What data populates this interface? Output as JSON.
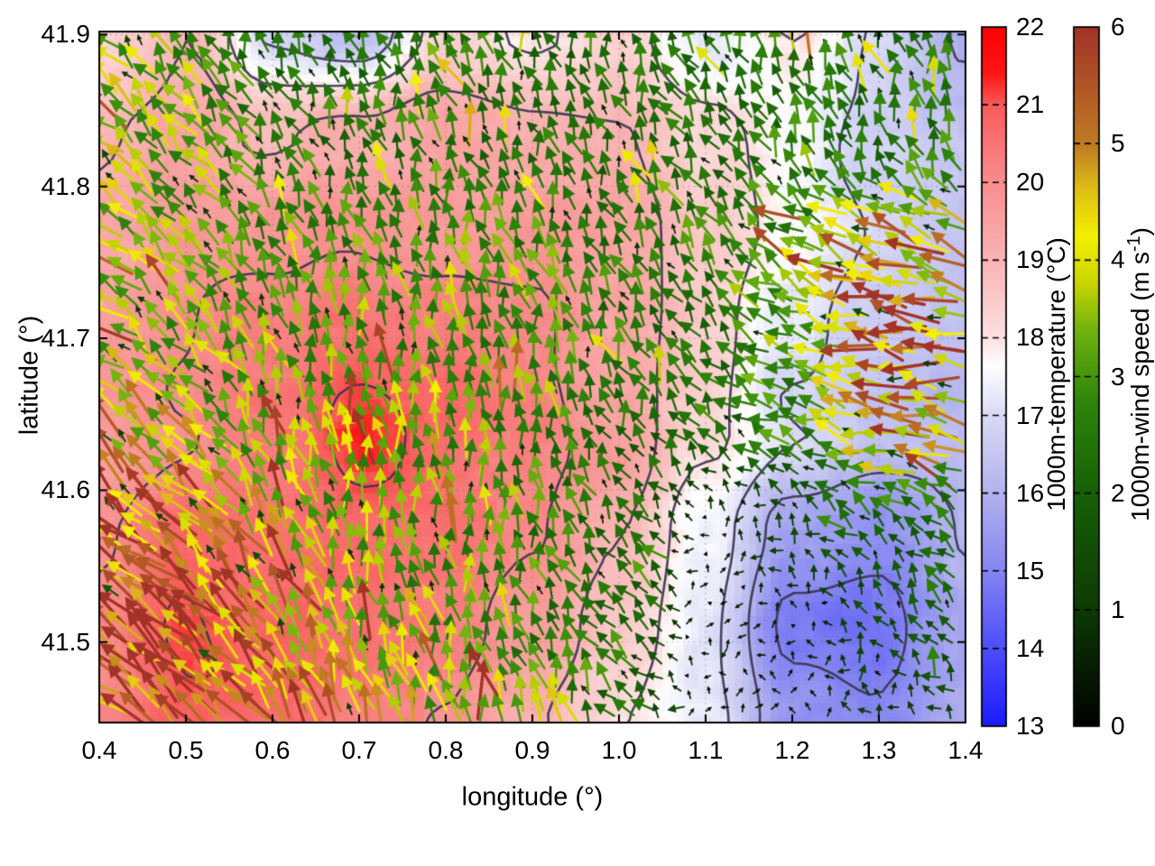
{
  "figure": {
    "xlabel": "longitude (°)",
    "ylabel": "latitude (°)",
    "background": "#ffffff",
    "contour_color": "#3b3550",
    "border_color": "#000000",
    "grid_dot_color": "rgba(95,95,95,0.45)"
  },
  "axes": {
    "x": {
      "min": 0.4,
      "max": 1.4,
      "ticks": [
        "0.4",
        "0.5",
        "0.6",
        "0.7",
        "0.8",
        "0.9",
        "1.0",
        "1.1",
        "1.2",
        "1.3",
        "1.4"
      ]
    },
    "y": {
      "min": 41.447,
      "max": 41.902,
      "ticks": [
        "41.5",
        "41.6",
        "41.7",
        "41.8",
        "41.9"
      ]
    }
  },
  "colorbars": {
    "temperature": {
      "label": "1000m-temperature (°C)",
      "min": 13,
      "max": 22,
      "ticks": [
        "13",
        "14",
        "15",
        "16",
        "17",
        "18",
        "19",
        "20",
        "21",
        "22"
      ],
      "stops": [
        {
          "v": 13,
          "c": "#1a1aff"
        },
        {
          "v": 14,
          "c": "#4d4dfa"
        },
        {
          "v": 15,
          "c": "#8484f2"
        },
        {
          "v": 16,
          "c": "#b2b2ee"
        },
        {
          "v": 17,
          "c": "#d9d9f6"
        },
        {
          "v": 17.65,
          "c": "#ffffff"
        },
        {
          "v": 18,
          "c": "#fce0e0"
        },
        {
          "v": 19,
          "c": "#f9b4b4"
        },
        {
          "v": 20,
          "c": "#f88e8e"
        },
        {
          "v": 21,
          "c": "#fa5a5a"
        },
        {
          "v": 21.4,
          "c": "#fd1616"
        },
        {
          "v": 22,
          "c": "#fe0000"
        }
      ]
    },
    "wind": {
      "label_prefix": "1000m-wind speed (m s",
      "label_sup": "-1",
      "label_suffix": ")",
      "min": 0,
      "max": 6,
      "ticks": [
        "0",
        "1",
        "2",
        "3",
        "4",
        "5",
        "6"
      ],
      "stops": [
        {
          "v": 0,
          "c": "#000000"
        },
        {
          "v": 1,
          "c": "#0c3a03"
        },
        {
          "v": 2,
          "c": "#166006"
        },
        {
          "v": 2.8,
          "c": "#2f850a"
        },
        {
          "v": 3.4,
          "c": "#6fb30e"
        },
        {
          "v": 3.8,
          "c": "#c8d400"
        },
        {
          "v": 4.2,
          "c": "#f4f000"
        },
        {
          "v": 4.6,
          "c": "#dfc015"
        },
        {
          "v": 5,
          "c": "#c07b22"
        },
        {
          "v": 5.5,
          "c": "#b05526"
        },
        {
          "v": 6,
          "c": "#a23327"
        }
      ]
    }
  },
  "chart_data": {
    "type": "heatmap",
    "overlays": [
      "contour",
      "quiver"
    ],
    "title": "",
    "xlabel": "longitude (°)",
    "ylabel": "latitude (°)",
    "xlim": [
      0.4,
      1.4
    ],
    "ylim": [
      41.447,
      41.902
    ],
    "grid": true,
    "temperature_units": "°C",
    "wind_units": "m s-1",
    "temperature_grid": {
      "x": [
        0.4,
        0.5,
        0.6,
        0.7,
        0.8,
        0.9,
        1.0,
        1.1,
        1.2,
        1.3,
        1.4
      ],
      "y": [
        41.902,
        41.835,
        41.77,
        41.705,
        41.64,
        41.575,
        41.51,
        41.445
      ],
      "values": [
        [
          18.2,
          19.0,
          16.8,
          16.3,
          18.4,
          18.0,
          18.4,
          17.2,
          18.0,
          16.8,
          15.9
        ],
        [
          18.8,
          19.3,
          18.8,
          19.2,
          19.5,
          19.3,
          19.0,
          18.3,
          17.6,
          16.8,
          16.3
        ],
        [
          19.3,
          19.8,
          19.8,
          20.0,
          19.8,
          19.7,
          19.3,
          18.5,
          17.5,
          16.9,
          16.5
        ],
        [
          19.6,
          19.9,
          20.2,
          20.6,
          20.3,
          20.0,
          19.4,
          18.3,
          17.3,
          16.7,
          16.4
        ],
        [
          19.7,
          20.0,
          20.4,
          21.25,
          20.6,
          20.2,
          19.5,
          18.2,
          17.0,
          16.4,
          16.2
        ],
        [
          19.8,
          20.6,
          20.4,
          20.7,
          20.5,
          20.0,
          19.2,
          17.6,
          15.6,
          15.2,
          16.0
        ],
        [
          20.0,
          21.15,
          20.8,
          20.4,
          20.2,
          19.6,
          18.6,
          17.2,
          14.8,
          14.6,
          15.6
        ],
        [
          20.2,
          20.8,
          20.5,
          20.2,
          19.9,
          19.0,
          18.0,
          17.4,
          15.4,
          15.0,
          15.8
        ]
      ]
    },
    "contour_levels": [
      15,
      16,
      17,
      18,
      19,
      20,
      21
    ],
    "wind_grid": {
      "x": [
        0.4,
        0.5,
        0.6,
        0.7,
        0.8,
        0.9,
        1.0,
        1.1,
        1.2,
        1.3,
        1.4
      ],
      "y": [
        41.902,
        41.835,
        41.77,
        41.705,
        41.64,
        41.575,
        41.51,
        41.445
      ],
      "u": [
        [
          -2.2,
          -1.6,
          -0.6,
          -0.6,
          -1.0,
          -0.6,
          -0.6,
          -1.0,
          -0.6,
          -0.5,
          -0.3
        ],
        [
          -2.8,
          -2.0,
          -1.0,
          -0.8,
          -0.8,
          -0.8,
          -0.8,
          -1.2,
          -1.0,
          -0.8,
          -0.5
        ],
        [
          -2.6,
          -2.0,
          -1.0,
          -0.5,
          -0.5,
          -0.8,
          -1.0,
          -1.5,
          -2.5,
          -4.0,
          -3.6
        ],
        [
          -2.8,
          -2.0,
          -0.8,
          -0.3,
          -0.3,
          -0.5,
          -1.0,
          -1.5,
          -3.0,
          -5.0,
          -4.6
        ],
        [
          -3.2,
          -2.5,
          -1.0,
          -0.3,
          -0.3,
          -0.5,
          -0.8,
          -1.2,
          -2.4,
          -4.4,
          -4.0
        ],
        [
          -3.8,
          -3.4,
          -2.0,
          -0.8,
          -0.5,
          -0.5,
          -1.5,
          -0.3,
          -0.8,
          -1.4,
          -1.8
        ],
        [
          -4.5,
          -4.2,
          -2.5,
          -1.0,
          -0.5,
          -0.8,
          -1.8,
          -0.2,
          -0.3,
          -0.8,
          -1.2
        ],
        [
          -4.8,
          -4.5,
          -3.0,
          -1.5,
          -0.8,
          -0.3,
          -1.6,
          -0.2,
          -0.3,
          -0.5,
          -0.8
        ]
      ],
      "v": [
        [
          2.6,
          2.6,
          2.1,
          2.1,
          2.5,
          2.1,
          2.1,
          2.1,
          2.5,
          2.1,
          2.5
        ],
        [
          2.5,
          2.6,
          2.2,
          2.2,
          2.2,
          2.2,
          2.0,
          2.0,
          2.2,
          2.2,
          2.5
        ],
        [
          2.5,
          2.6,
          2.5,
          2.8,
          2.8,
          2.5,
          2.2,
          2.0,
          1.5,
          1.5,
          1.5
        ],
        [
          2.2,
          2.5,
          2.8,
          3.0,
          3.0,
          2.8,
          2.2,
          1.8,
          1.2,
          1.0,
          1.0
        ],
        [
          2.8,
          2.8,
          3.0,
          3.2,
          3.0,
          2.8,
          2.0,
          1.5,
          1.0,
          0.8,
          0.8
        ],
        [
          3.2,
          3.5,
          3.5,
          3.0,
          2.8,
          2.5,
          1.8,
          0.3,
          0.8,
          1.4,
          1.5
        ],
        [
          3.5,
          4.0,
          4.0,
          3.5,
          3.0,
          2.6,
          1.8,
          0.25,
          0.4,
          1.0,
          1.2
        ],
        [
          3.2,
          3.8,
          4.0,
          3.8,
          3.4,
          3.6,
          1.6,
          0.25,
          0.4,
          0.8,
          1.0
        ]
      ]
    },
    "arrow_spacing_px": 19
  }
}
